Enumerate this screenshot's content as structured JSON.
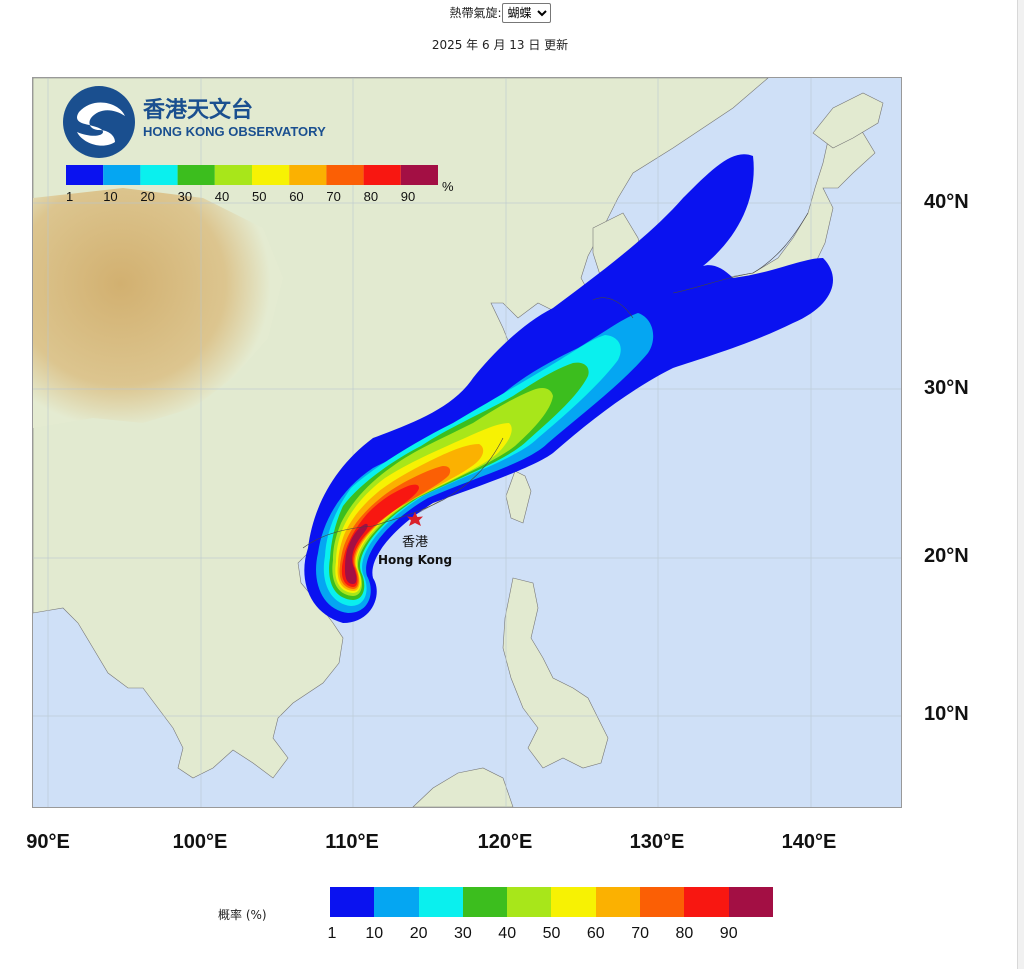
{
  "header": {
    "selector_label": "熱帶氣旋:",
    "selected_storm": "蝴蝶",
    "update_text": "2025 年 6 月 13 日 更新"
  },
  "logo": {
    "name_zh": "香港天文台",
    "name_en": "HONG KONG OBSERVATORY"
  },
  "legend": {
    "title": "概率 (%)",
    "unit": "%",
    "ticks": [
      "1",
      "10",
      "20",
      "30",
      "40",
      "50",
      "60",
      "70",
      "80",
      "90"
    ],
    "colors": [
      "#0a12f0",
      "#05a6f2",
      "#0af0ee",
      "#3cbe1e",
      "#a8e61a",
      "#f7f203",
      "#fbb101",
      "#fb5f05",
      "#f81711",
      "#a30f44"
    ]
  },
  "map": {
    "lat_labels": [
      "40°N",
      "30°N",
      "20°N",
      "10°N"
    ],
    "lon_labels": [
      "90°E",
      "100°E",
      "110°E",
      "120°E",
      "130°E",
      "140°E"
    ],
    "place_zh": "香港",
    "place_en": "Hong Kong",
    "colors": {
      "ocean": "#cfe0f7",
      "land": "#e4ebd1",
      "plateau": "#d9bf88",
      "marker": "#d9212a"
    }
  }
}
